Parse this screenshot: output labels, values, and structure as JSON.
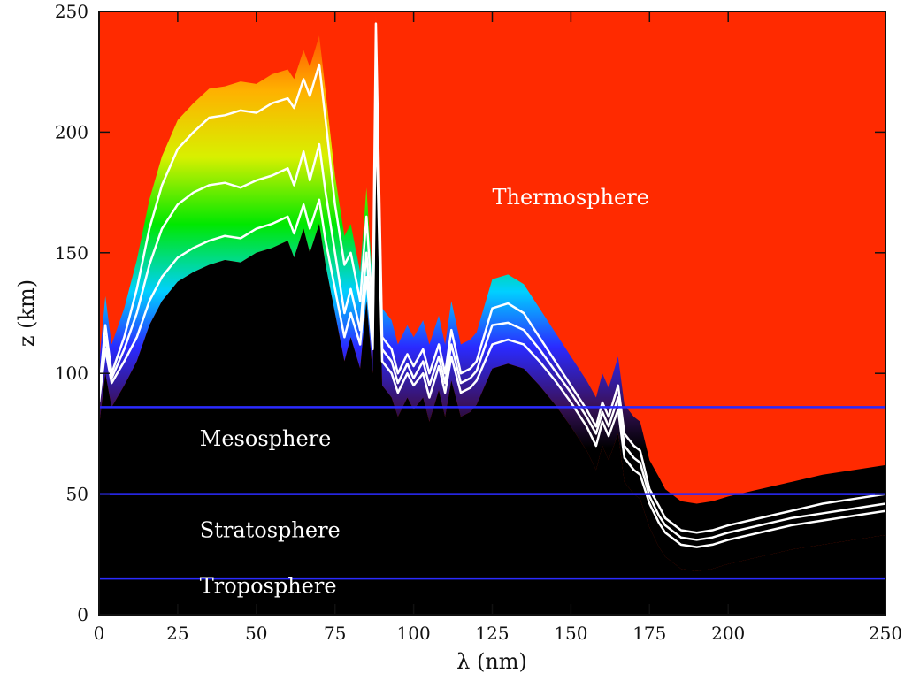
{
  "chart_data": {
    "type": "heatmap",
    "xlabel": "λ (nm)",
    "ylabel": "z (km)",
    "xlim": [
      0,
      250
    ],
    "ylim": [
      0,
      250
    ],
    "x_ticks": [
      0,
      25,
      50,
      75,
      100,
      125,
      150,
      175,
      200,
      250
    ],
    "y_ticks": [
      0,
      50,
      100,
      150,
      200,
      250
    ],
    "grid": false,
    "colors": {
      "background_high": "#ff2a00",
      "background_low": "#000000",
      "boundary_line": "#2b2bff",
      "contour": "#ffffff"
    },
    "layer_boundaries_km": [
      15,
      50,
      86
    ],
    "layers": [
      {
        "label": "Thermosphere",
        "x": 125,
        "y": 170
      },
      {
        "label": "Mesosphere",
        "x": 32,
        "y": 70
      },
      {
        "label": "Stratosphere",
        "x": 32,
        "y": 32
      },
      {
        "label": "Troposphere",
        "x": 32,
        "y": 9
      }
    ],
    "contours": [
      {
        "name": "upper",
        "x": [
          0,
          2,
          4,
          8,
          12,
          16,
          20,
          25,
          30,
          35,
          40,
          45,
          50,
          55,
          60,
          62,
          65,
          67,
          70,
          72,
          75,
          78,
          80,
          83,
          85,
          87,
          88,
          90,
          93,
          95,
          98,
          100,
          103,
          105,
          108,
          110,
          112,
          115,
          118,
          120,
          125,
          130,
          135,
          140,
          145,
          150,
          155,
          158,
          160,
          162,
          165,
          167,
          170,
          172,
          175,
          178,
          180,
          185,
          190,
          195,
          200,
          210,
          220,
          230,
          240,
          250
        ],
        "y": [
          92,
          120,
          100,
          115,
          135,
          160,
          178,
          193,
          200,
          206,
          207,
          209,
          208,
          212,
          214,
          210,
          222,
          215,
          228,
          205,
          170,
          145,
          150,
          130,
          165,
          125,
          245,
          115,
          110,
          100,
          108,
          103,
          110,
          100,
          112,
          100,
          118,
          100,
          102,
          105,
          127,
          129,
          125,
          115,
          105,
          95,
          85,
          78,
          88,
          82,
          95,
          75,
          70,
          68,
          52,
          45,
          40,
          35,
          34,
          35,
          37,
          40,
          43,
          46,
          48,
          50
        ]
      },
      {
        "name": "middle",
        "x": [
          0,
          2,
          4,
          8,
          12,
          16,
          20,
          25,
          30,
          35,
          40,
          45,
          50,
          55,
          60,
          62,
          65,
          67,
          70,
          72,
          75,
          78,
          80,
          83,
          85,
          87,
          88,
          90,
          93,
          95,
          98,
          100,
          103,
          105,
          108,
          110,
          112,
          115,
          118,
          120,
          125,
          130,
          135,
          140,
          145,
          150,
          155,
          158,
          160,
          162,
          165,
          167,
          170,
          172,
          175,
          178,
          180,
          185,
          190,
          195,
          200,
          210,
          220,
          230,
          240,
          250
        ],
        "y": [
          90,
          115,
          98,
          110,
          125,
          145,
          160,
          170,
          175,
          178,
          179,
          177,
          180,
          182,
          185,
          178,
          192,
          180,
          195,
          175,
          150,
          125,
          135,
          118,
          150,
          115,
          225,
          110,
          105,
          96,
          104,
          98,
          105,
          95,
          107,
          96,
          112,
          96,
          98,
          101,
          120,
          121,
          118,
          110,
          101,
          92,
          82,
          75,
          84,
          78,
          90,
          70,
          65,
          63,
          49,
          41,
          37,
          32,
          31,
          32,
          34,
          37,
          40,
          42,
          44,
          46
        ]
      },
      {
        "name": "lower",
        "x": [
          0,
          2,
          4,
          8,
          12,
          16,
          20,
          25,
          30,
          35,
          40,
          45,
          50,
          55,
          60,
          62,
          65,
          67,
          70,
          72,
          75,
          78,
          80,
          83,
          85,
          87,
          88,
          90,
          93,
          95,
          98,
          100,
          103,
          105,
          108,
          110,
          112,
          115,
          118,
          120,
          125,
          130,
          135,
          140,
          145,
          150,
          155,
          158,
          160,
          162,
          165,
          167,
          170,
          172,
          175,
          178,
          180,
          185,
          190,
          195,
          200,
          210,
          220,
          230,
          240,
          250
        ],
        "y": [
          88,
          110,
          96,
          105,
          115,
          130,
          140,
          148,
          152,
          155,
          157,
          156,
          160,
          162,
          165,
          158,
          170,
          160,
          172,
          155,
          135,
          115,
          125,
          112,
          140,
          110,
          210,
          105,
          100,
          92,
          100,
          95,
          100,
          90,
          103,
          92,
          107,
          92,
          94,
          97,
          112,
          114,
          112,
          105,
          97,
          88,
          78,
          70,
          80,
          74,
          85,
          65,
          60,
          58,
          46,
          38,
          34,
          29,
          28,
          29,
          31,
          34,
          37,
          39,
          41,
          43
        ]
      }
    ]
  }
}
